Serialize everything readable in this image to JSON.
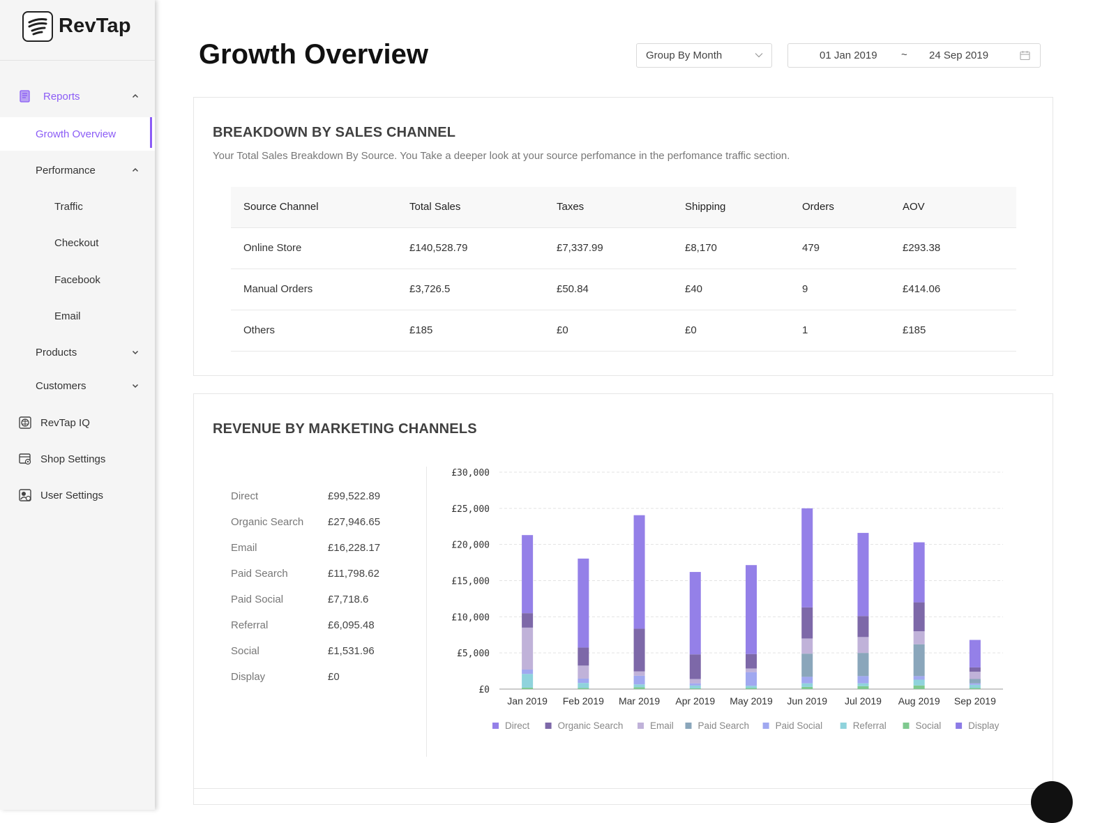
{
  "app": {
    "name": "RevTap"
  },
  "sidebar": {
    "reports": "Reports",
    "growth_overview": "Growth Overview",
    "performance": "Performance",
    "traffic": "Traffic",
    "checkout": "Checkout",
    "facebook": "Facebook",
    "email": "Email",
    "products": "Products",
    "customers": "Customers",
    "revtap_iq": "RevTap IQ",
    "shop_settings": "Shop Settings",
    "user_settings": "User Settings"
  },
  "header": {
    "title": "Growth Overview",
    "group_by": "Group By Month",
    "date_from": "01 Jan 2019",
    "date_sep": "~",
    "date_to": "24 Sep 2019"
  },
  "breakdown": {
    "title": "BREAKDOWN BY SALES CHANNEL",
    "subtitle": "Your Total Sales Breakdown By Source. You Take a deeper look at your source perfomance in the perfomance traffic section.",
    "columns": [
      "Source Channel",
      "Total Sales",
      "Taxes",
      "Shipping",
      "Orders",
      "AOV"
    ],
    "rows": [
      [
        "Online Store",
        "£140,528.79",
        "£7,337.99",
        "£8,170",
        "479",
        "£293.38"
      ],
      [
        "Manual Orders",
        "£3,726.5",
        "£50.84",
        "£40",
        "9",
        "£414.06"
      ],
      [
        "Others",
        "£185",
        "£0",
        "£0",
        "1",
        "£185"
      ]
    ]
  },
  "revenue": {
    "title": "REVENUE BY MARKETING CHANNELS",
    "totals": [
      {
        "name": "Direct",
        "value": "£99,522.89"
      },
      {
        "name": "Organic Search",
        "value": "£27,946.65"
      },
      {
        "name": "Email",
        "value": "£16,228.17"
      },
      {
        "name": "Paid Search",
        "value": "£11,798.62"
      },
      {
        "name": "Paid Social",
        "value": "£7,718.6"
      },
      {
        "name": "Referral",
        "value": "£6,095.48"
      },
      {
        "name": "Social",
        "value": "£1,531.96"
      },
      {
        "name": "Display",
        "value": "£0"
      }
    ]
  },
  "chart_data": {
    "type": "bar",
    "stacked": true,
    "categories": [
      "Jan 2019",
      "Feb 2019",
      "Mar 2019",
      "Apr 2019",
      "May 2019",
      "Jun 2019",
      "Jul 2019",
      "Aug 2019",
      "Sep 2019"
    ],
    "ylim": [
      0,
      30000
    ],
    "yticks": [
      "£0",
      "£5,000",
      "£10,000",
      "£15,000",
      "£20,000",
      "£25,000",
      "£30,000"
    ],
    "ytick_values": [
      0,
      5000,
      10000,
      15000,
      20000,
      25000,
      30000
    ],
    "grid": true,
    "legend_position": "bottom",
    "series": [
      {
        "name": "Social",
        "color": "#7fc98f",
        "values": [
          200,
          150,
          250,
          100,
          150,
          300,
          400,
          500,
          150
        ]
      },
      {
        "name": "Referral",
        "color": "#8fd3dc",
        "values": [
          1900,
          700,
          400,
          400,
          300,
          500,
          400,
          800,
          450
        ]
      },
      {
        "name": "Paid Social",
        "color": "#a0a8f0",
        "values": [
          600,
          600,
          1200,
          300,
          1900,
          900,
          1000,
          500,
          200
        ]
      },
      {
        "name": "Paid Search",
        "color": "#8aa6bb",
        "values": [
          0,
          0,
          0,
          0,
          0,
          3200,
          3200,
          4400,
          600
        ]
      },
      {
        "name": "Email",
        "color": "#c0b2d9",
        "values": [
          5800,
          1800,
          600,
          600,
          500,
          2100,
          2200,
          1800,
          1000
        ]
      },
      {
        "name": "Organic Search",
        "color": "#7d68a8",
        "values": [
          2000,
          2500,
          5900,
          3400,
          2000,
          4300,
          2900,
          4000,
          600
        ]
      },
      {
        "name": "Direct",
        "color": "#9480e8",
        "values": [
          10800,
          12300,
          15700,
          11400,
          12300,
          13700,
          11500,
          8300,
          3800
        ]
      },
      {
        "name": "Display",
        "color": "#8c7be6",
        "values": [
          0,
          0,
          0,
          0,
          0,
          0,
          0,
          0,
          0
        ]
      }
    ],
    "legend_order": [
      "Direct",
      "Organic Search",
      "Email",
      "Paid Search",
      "Paid Social",
      "Referral",
      "Social",
      "Display"
    ]
  }
}
